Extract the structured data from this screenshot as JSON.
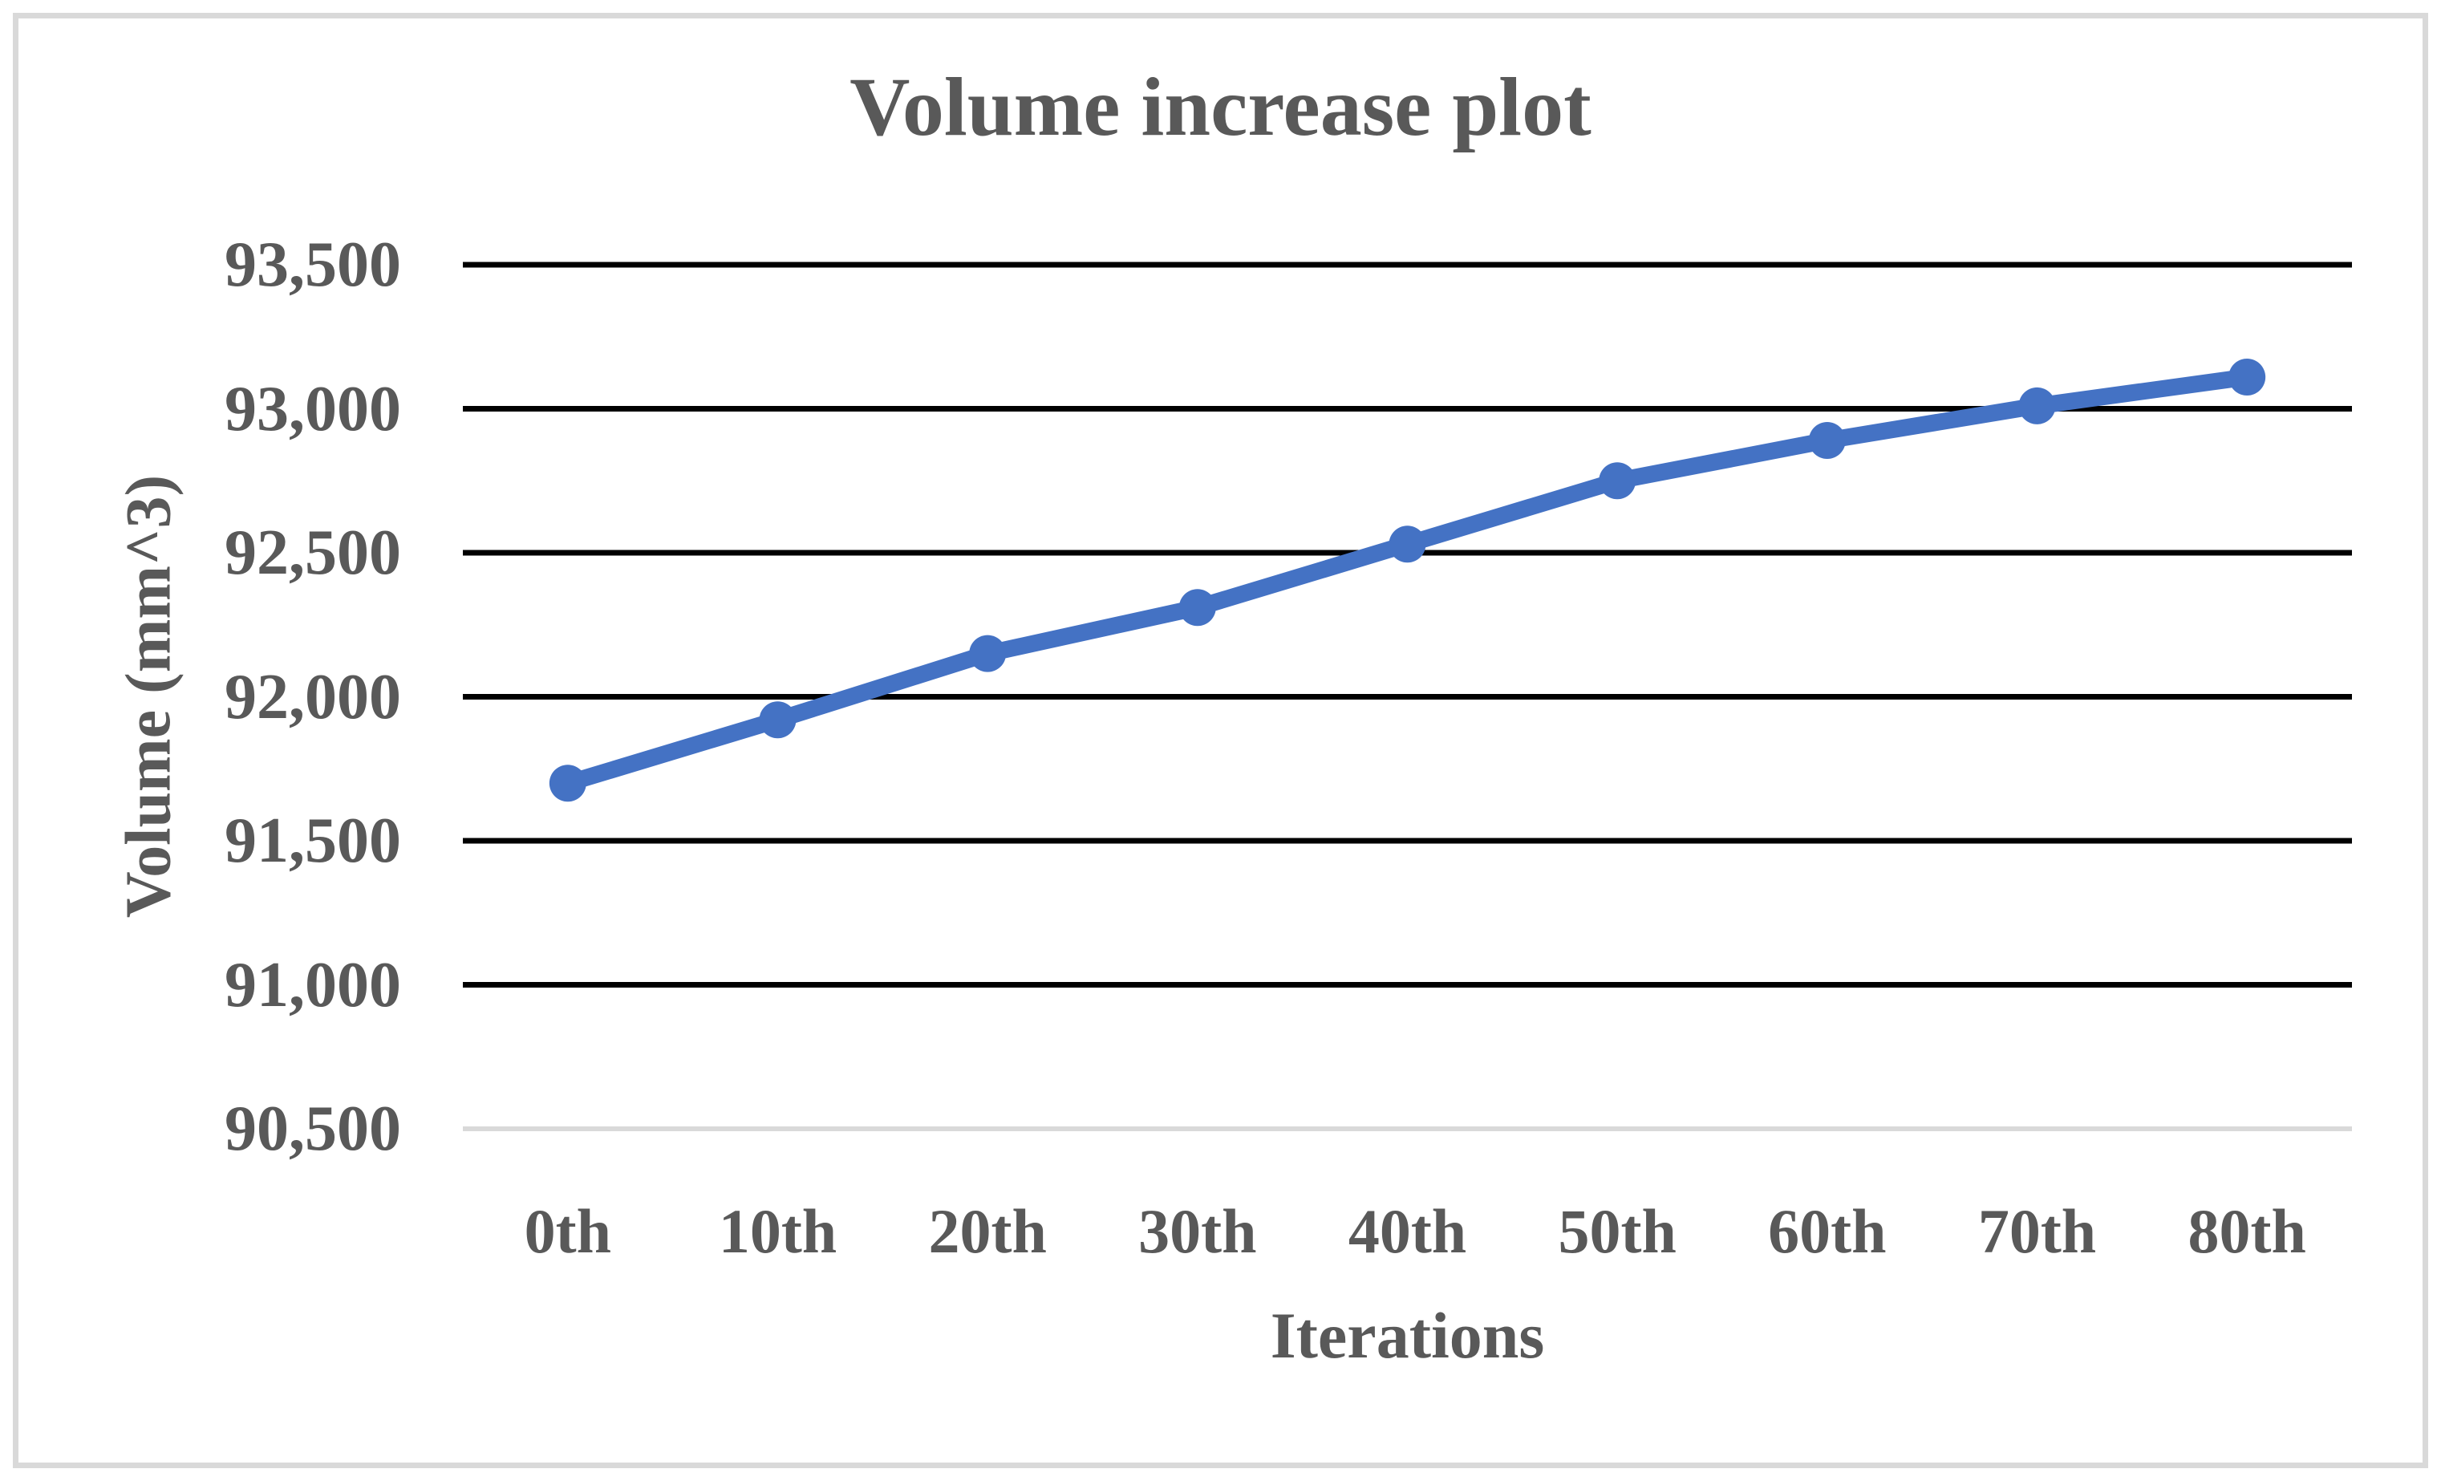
{
  "chart_data": {
    "type": "line",
    "title": "Volume increase plot",
    "xlabel": "Iterations",
    "ylabel": "Volume (mm^3)",
    "categories": [
      "0th",
      "10th",
      "20th",
      "30th",
      "40th",
      "50th",
      "60th",
      "70th",
      "80th"
    ],
    "values": [
      91700,
      91920,
      92150,
      92310,
      92530,
      92750,
      92890,
      93010,
      93110
    ],
    "ylim": [
      90500,
      93500
    ],
    "y_ticks": [
      93500,
      93000,
      92500,
      92000,
      91500,
      91000,
      90500
    ],
    "y_tick_labels": [
      "93,500",
      "93,000",
      "92,500",
      "92,000",
      "91,500",
      "91,000",
      "90,500"
    ],
    "grid": "horizontal-major",
    "legend": "none",
    "colors": {
      "line": "#4472C4",
      "marker": "#4472C4",
      "gridline": "#000000",
      "bottom_gridline": "#D9D9D9",
      "text": "#595959",
      "frame_border": "#D9D9D9"
    }
  }
}
